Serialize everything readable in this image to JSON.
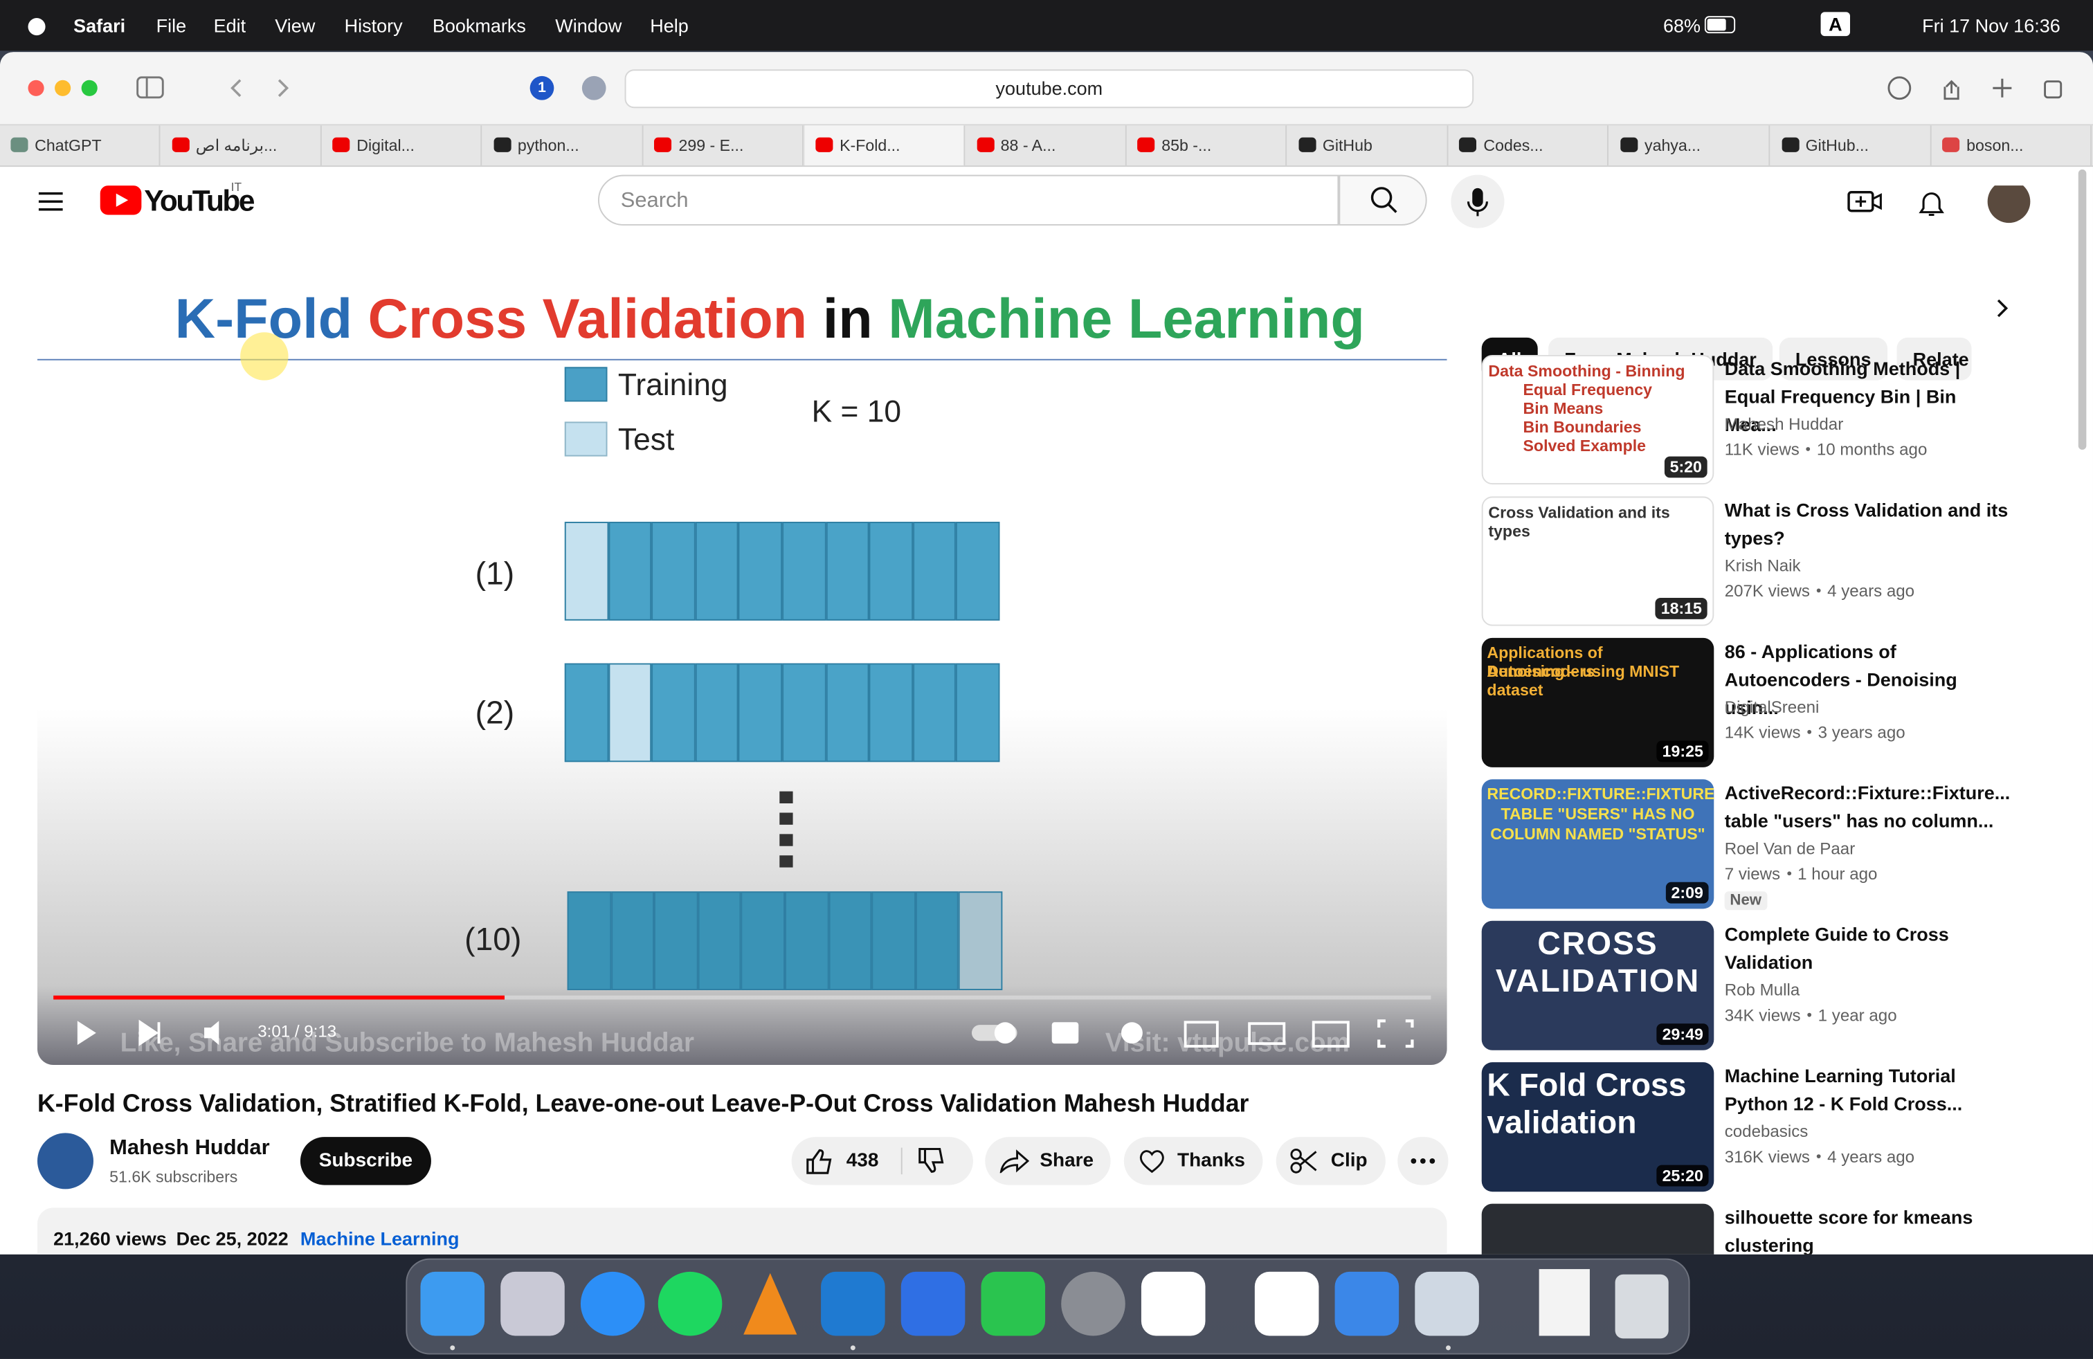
{
  "menubar": {
    "app": "Safari",
    "menus": [
      "File",
      "Edit",
      "View",
      "History",
      "Bookmarks",
      "Window",
      "Help"
    ],
    "battery": "68%",
    "input_source": "A",
    "clock": "Fri 17 Nov  16:36"
  },
  "browser": {
    "extension_badge": "1",
    "address": "youtube.com",
    "tabs": [
      "ChatGPT",
      "برنامه اص...",
      "Digital...",
      "python...",
      "299 - E...",
      "K-Fold...",
      "88 - A...",
      "85b -...",
      "GitHub",
      "Codes...",
      "yahya...",
      "GitHub...",
      "boson..."
    ]
  },
  "youtube": {
    "logo": "YouTube",
    "region": "IT",
    "search_placeholder": "Search"
  },
  "video": {
    "slide_title": [
      "K-Fold",
      "Cross Validation",
      "in",
      "Machine Learning"
    ],
    "legend": [
      "Training",
      "Test"
    ],
    "k_label": "K = 10",
    "rows": [
      "(1)",
      "(2)",
      "(10)"
    ],
    "time": "3:01 / 9:13",
    "watermark_left": "Like, Share and Subscribe to Mahesh Huddar",
    "watermark_right": "Visit: vtupulse.com",
    "title": "K-Fold Cross Validation, Stratified K-Fold, Leave-one-out Leave-P-Out Cross Validation Mahesh Huddar",
    "channel": "Mahesh Huddar",
    "subscribers": "51.6K subscribers",
    "subscribe": "Subscribe",
    "likes": "438",
    "share": "Share",
    "thanks": "Thanks",
    "clip": "Clip",
    "views": "21,260 views",
    "date": "Dec 25, 2022",
    "tag": "Machine Learning"
  },
  "chips": [
    "All",
    "From Mahesh Huddar",
    "Lessons",
    "Relate"
  ],
  "recommendations": [
    {
      "title": "Data Smoothing Methods | Equal Frequency Bin | Bin Mea...",
      "channel": "Mahesh Huddar",
      "views": "11K views",
      "age": "10 months ago",
      "duration": "5:20",
      "thumb_text": [
        "Data Smoothing - Binning",
        "Equal Frequency",
        "Bin Means",
        "Bin Boundaries",
        "Solved Example"
      ]
    },
    {
      "title": "What is Cross Validation and its types?",
      "channel": "Krish Naik",
      "views": "207K views",
      "age": "4 years ago",
      "duration": "18:15",
      "thumb_text": [
        "Cross Validation and its types"
      ]
    },
    {
      "title": "86 - Applications of Autoencoders - Denoising usin...",
      "channel": "DigitalSreeni",
      "views": "14K views",
      "age": "3 years ago",
      "duration": "19:25",
      "thumb_text": [
        "Applications of Autoencoders",
        "Denoising – using MNIST dataset"
      ]
    },
    {
      "title": "ActiveRecord::Fixture::Fixture... table \"users\" has no column...",
      "channel": "Roel Van de Paar",
      "views": "7 views",
      "age": "1 hour ago",
      "duration": "2:09",
      "badge": "New",
      "thumb_text": [
        "RECORD::FIXTURE::FIXTURE TABLE \"USERS\" HAS NO COLUMN NAMED \"STATUS\""
      ]
    },
    {
      "title": "Complete Guide to Cross Validation",
      "channel": "Rob Mulla",
      "views": "34K views",
      "age": "1 year ago",
      "duration": "29:49",
      "thumb_text": [
        "CROSS VALIDATION"
      ]
    },
    {
      "title": "Machine Learning Tutorial Python 12 - K Fold Cross...",
      "channel": "codebasics",
      "views": "316K views",
      "age": "4 years ago",
      "duration": "25:20",
      "thumb_text": [
        "K Fold Cross",
        "validation"
      ]
    },
    {
      "title": "silhouette score for kmeans clustering"
    }
  ]
}
